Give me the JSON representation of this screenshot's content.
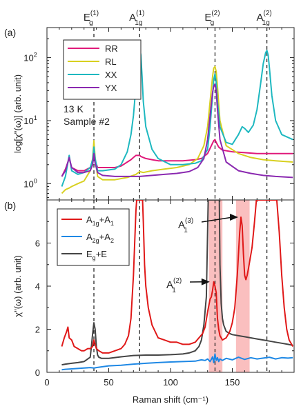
{
  "chart_data": [
    {
      "panel_label": "(a)",
      "type": "line",
      "ylabel": "log[χ\"(ω)] (arb. unit)",
      "yscale": "log",
      "ylim": [
        0.55,
        300
      ],
      "xlim": [
        0,
        200
      ],
      "y_ticks": [
        {
          "value": 1,
          "base": "10",
          "exp": "0"
        },
        {
          "value": 10,
          "base": "10",
          "exp": "1"
        },
        {
          "value": 100,
          "base": "10",
          "exp": "2"
        }
      ],
      "annotations": {
        "temperature": "13 K",
        "sample": "Sample #2"
      },
      "mode_labels": [
        {
          "x": 38,
          "main": "E",
          "sub": "g",
          "sup": "(1)"
        },
        {
          "x": 75,
          "main": "A",
          "sub": "1g",
          "sup": "(1)"
        },
        {
          "x": 136,
          "main": "E",
          "sub": "g",
          "sup": "(2)"
        },
        {
          "x": 178,
          "main": "A",
          "sub": "1g",
          "sup": "(2)"
        }
      ],
      "vlines": [
        38,
        75,
        136,
        178
      ],
      "legend": {
        "position": "top-left",
        "entries": [
          "RR",
          "RL",
          "XX",
          "YX"
        ]
      },
      "series": [
        {
          "name": "RR",
          "color": "#e0197a",
          "x": [
            12,
            15,
            18,
            20,
            25,
            30,
            35,
            37,
            38,
            39,
            41,
            45,
            55,
            60,
            65,
            68,
            70,
            72,
            74,
            75,
            76,
            78,
            80,
            85,
            90,
            100,
            110,
            120,
            125,
            130,
            133,
            135,
            136,
            137,
            139,
            142,
            150,
            160,
            170,
            180,
            190,
            199
          ],
          "y": [
            1.3,
            1.7,
            2.5,
            1.8,
            1.6,
            1.6,
            1.8,
            2.2,
            3.2,
            2.3,
            1.8,
            1.8,
            1.8,
            1.9,
            2.2,
            2.4,
            2.6,
            2.8,
            2.8,
            2.8,
            2.7,
            2.6,
            2.5,
            2.4,
            2.3,
            2.3,
            2.3,
            2.4,
            2.5,
            3.0,
            4.0,
            4.8,
            5.0,
            4.5,
            3.8,
            3.4,
            3.2,
            3.1,
            3.0,
            3.0,
            3.0,
            3.0
          ]
        },
        {
          "name": "RL",
          "color": "#d8d020",
          "x": [
            12,
            15,
            18,
            20,
            25,
            30,
            35,
            37,
            38,
            39,
            41,
            45,
            55,
            65,
            72,
            75,
            78,
            85,
            95,
            105,
            115,
            122,
            127,
            130,
            132,
            134,
            135,
            136,
            137,
            138,
            140,
            145,
            155,
            165,
            175,
            185,
            199
          ],
          "y": [
            0.7,
            0.8,
            0.85,
            0.9,
            1.0,
            1.1,
            1.6,
            2.5,
            4.8,
            2.6,
            1.3,
            1.15,
            1.15,
            1.25,
            1.4,
            1.55,
            1.5,
            1.6,
            1.7,
            1.8,
            2.0,
            2.5,
            4.0,
            8.0,
            20,
            50,
            68,
            72,
            60,
            35,
            10,
            4.0,
            3.0,
            2.6,
            2.4,
            2.3,
            2.2
          ]
        },
        {
          "name": "XX",
          "color": "#1eb8c0",
          "x": [
            12,
            15,
            18,
            20,
            25,
            30,
            35,
            37,
            38,
            39,
            41,
            45,
            55,
            60,
            65,
            68,
            70,
            72,
            73,
            74,
            75,
            76,
            77,
            78,
            80,
            85,
            90,
            100,
            110,
            120,
            125,
            130,
            132,
            134,
            135,
            136,
            137,
            138,
            140,
            145,
            150,
            155,
            158,
            160,
            163,
            167,
            170,
            173,
            175,
            177,
            178,
            179,
            180,
            182,
            185,
            190,
            199
          ],
          "y": [
            0.9,
            1.3,
            2.8,
            1.6,
            1.4,
            1.5,
            1.8,
            2.4,
            3.8,
            2.5,
            1.6,
            1.6,
            1.7,
            2.0,
            3.2,
            6.0,
            12,
            35,
            80,
            130,
            145,
            110,
            50,
            20,
            8.0,
            3.5,
            2.5,
            2.0,
            2.0,
            2.1,
            2.3,
            3.5,
            8,
            25,
            45,
            55,
            40,
            20,
            8.0,
            4.5,
            4.2,
            6.0,
            8.0,
            7.5,
            6.5,
            8.5,
            15,
            40,
            80,
            120,
            130,
            110,
            70,
            25,
            10,
            6.0,
            5.0
          ]
        },
        {
          "name": "YX",
          "color": "#8a28b0",
          "x": [
            12,
            15,
            18,
            20,
            25,
            30,
            35,
            37,
            38,
            39,
            41,
            45,
            55,
            65,
            75,
            85,
            95,
            105,
            115,
            122,
            127,
            130,
            132,
            134,
            135,
            136,
            137,
            138,
            140,
            145,
            155,
            165,
            175,
            185,
            199
          ],
          "y": [
            1.3,
            1.6,
            2.6,
            1.8,
            1.5,
            1.5,
            1.6,
            2.0,
            3.0,
            2.1,
            1.5,
            1.35,
            1.3,
            1.3,
            1.3,
            1.35,
            1.4,
            1.45,
            1.55,
            1.8,
            2.5,
            5.0,
            12,
            28,
            35,
            38,
            30,
            15,
            5.0,
            2.2,
            1.6,
            1.45,
            1.35,
            1.3,
            1.25
          ]
        }
      ]
    },
    {
      "panel_label": "(b)",
      "type": "line",
      "xlabel": "Raman shift (cm⁻¹)",
      "ylabel": "χ\"(ω) (arb. unit)",
      "xlim": [
        0,
        200
      ],
      "ylim": [
        0,
        8
      ],
      "x_ticks": [
        0,
        50,
        100,
        150
      ],
      "y_ticks": [
        0,
        2,
        4,
        6
      ],
      "vlines": [
        38,
        75,
        136,
        178
      ],
      "shaded_bands": [
        [
          131,
          142
        ],
        [
          153,
          164
        ]
      ],
      "band_color": "#f9b4b4",
      "arrows": [
        {
          "main": "A",
          "sub": "1",
          "sup": "(2)",
          "target_x": 134,
          "target_y": 4.2
        },
        {
          "main": "A",
          "sub": "1",
          "sup": "(3)",
          "target_x": 157,
          "target_y": 7.2
        }
      ],
      "legend": {
        "position": "top-left"
      },
      "series": [
        {
          "name_main": "A",
          "name_sub": "1g",
          "name_tail": "+A",
          "name_tail_sub": "1",
          "color": "#e01818",
          "x": [
            12,
            14,
            16,
            17,
            18,
            20,
            22,
            25,
            28,
            30,
            33,
            35,
            37,
            38,
            39,
            40,
            42,
            45,
            50,
            55,
            60,
            63,
            66,
            68,
            70,
            71,
            72,
            72.6,
            77.4,
            78,
            79,
            80,
            82,
            85,
            90,
            95,
            100,
            105,
            110,
            115,
            120,
            123,
            126,
            128,
            130,
            131,
            132,
            133,
            134,
            135,
            136,
            137,
            138,
            139,
            140,
            142,
            145,
            148,
            150,
            152,
            154,
            156,
            157,
            158,
            159,
            160,
            161,
            162,
            163,
            166,
            168,
            169.5,
            186,
            188,
            190,
            192,
            194,
            196,
            199
          ],
          "y": [
            1.2,
            1.6,
            1.9,
            2.1,
            1.6,
            1.5,
            1.2,
            1.1,
            1.0,
            1.0,
            1.1,
            1.1,
            1.2,
            1.5,
            1.3,
            1.1,
            1.0,
            0.9,
            0.9,
            1.0,
            1.1,
            1.3,
            1.7,
            2.5,
            4.5,
            6.0,
            7.5,
            8.0,
            8.0,
            7.0,
            5.0,
            4.0,
            3.0,
            2.2,
            1.6,
            1.5,
            1.4,
            1.4,
            1.3,
            1.3,
            1.4,
            1.6,
            1.8,
            2.1,
            2.8,
            3.1,
            3.4,
            3.5,
            3.8,
            4.2,
            4.0,
            3.7,
            2.5,
            2.0,
            1.7,
            1.5,
            1.6,
            1.9,
            2.3,
            3.0,
            4.5,
            6.5,
            7.2,
            6.8,
            5.5,
            4.5,
            4.3,
            4.5,
            4.8,
            5.8,
            7.0,
            8.0,
            8.0,
            6.5,
            4.5,
            3.0,
            2.0,
            1.5,
            1.2
          ]
        },
        {
          "name_main": "A",
          "name_sub": "2g",
          "name_tail": "+A",
          "name_tail_sub": "2",
          "color": "#1e88e5",
          "x": [
            12,
            15,
            20,
            25,
            30,
            35,
            38,
            40,
            45,
            50,
            60,
            70,
            80,
            90,
            100,
            110,
            120,
            125,
            128,
            130,
            132,
            133,
            134,
            135,
            136,
            137,
            138,
            139,
            140,
            142,
            145,
            150,
            155,
            160,
            165,
            170,
            175,
            180,
            185,
            190,
            195,
            199
          ],
          "y": [
            0.12,
            0.14,
            0.16,
            0.18,
            0.2,
            0.22,
            0.2,
            0.22,
            0.26,
            0.3,
            0.33,
            0.38,
            0.42,
            0.45,
            0.48,
            0.5,
            0.52,
            0.58,
            0.55,
            0.62,
            0.5,
            0.6,
            0.72,
            0.45,
            0.85,
            0.55,
            0.68,
            0.5,
            0.62,
            0.55,
            0.65,
            0.58,
            0.7,
            0.6,
            0.68,
            0.62,
            0.66,
            0.7,
            0.62,
            0.68,
            0.66,
            0.68
          ]
        },
        {
          "name_main": "E",
          "name_sub": "g",
          "name_tail": "+E",
          "name_tail_sub": "",
          "color": "#444444",
          "x": [
            12,
            15,
            20,
            25,
            30,
            35,
            36,
            37,
            38,
            39,
            40,
            41,
            42,
            44,
            50,
            60,
            70,
            80,
            90,
            100,
            110,
            115,
            120,
            123,
            125,
            127,
            129,
            130.5,
            139.5,
            140,
            141,
            142,
            143,
            145,
            148,
            150,
            155,
            160,
            165,
            170,
            175,
            180,
            185,
            190,
            195,
            199
          ],
          "y": [
            0.35,
            0.38,
            0.42,
            0.45,
            0.5,
            0.7,
            1.2,
            1.8,
            2.3,
            2.0,
            1.2,
            0.8,
            0.7,
            0.65,
            0.65,
            0.72,
            0.78,
            0.8,
            0.8,
            0.82,
            0.85,
            0.9,
            1.0,
            1.2,
            1.5,
            2.2,
            3.5,
            8.0,
            8.0,
            5.0,
            3.2,
            2.5,
            2.2,
            1.9,
            1.8,
            1.75,
            1.7,
            1.65,
            1.6,
            1.55,
            1.5,
            1.45,
            1.4,
            1.35,
            1.3,
            1.25
          ]
        }
      ]
    }
  ]
}
